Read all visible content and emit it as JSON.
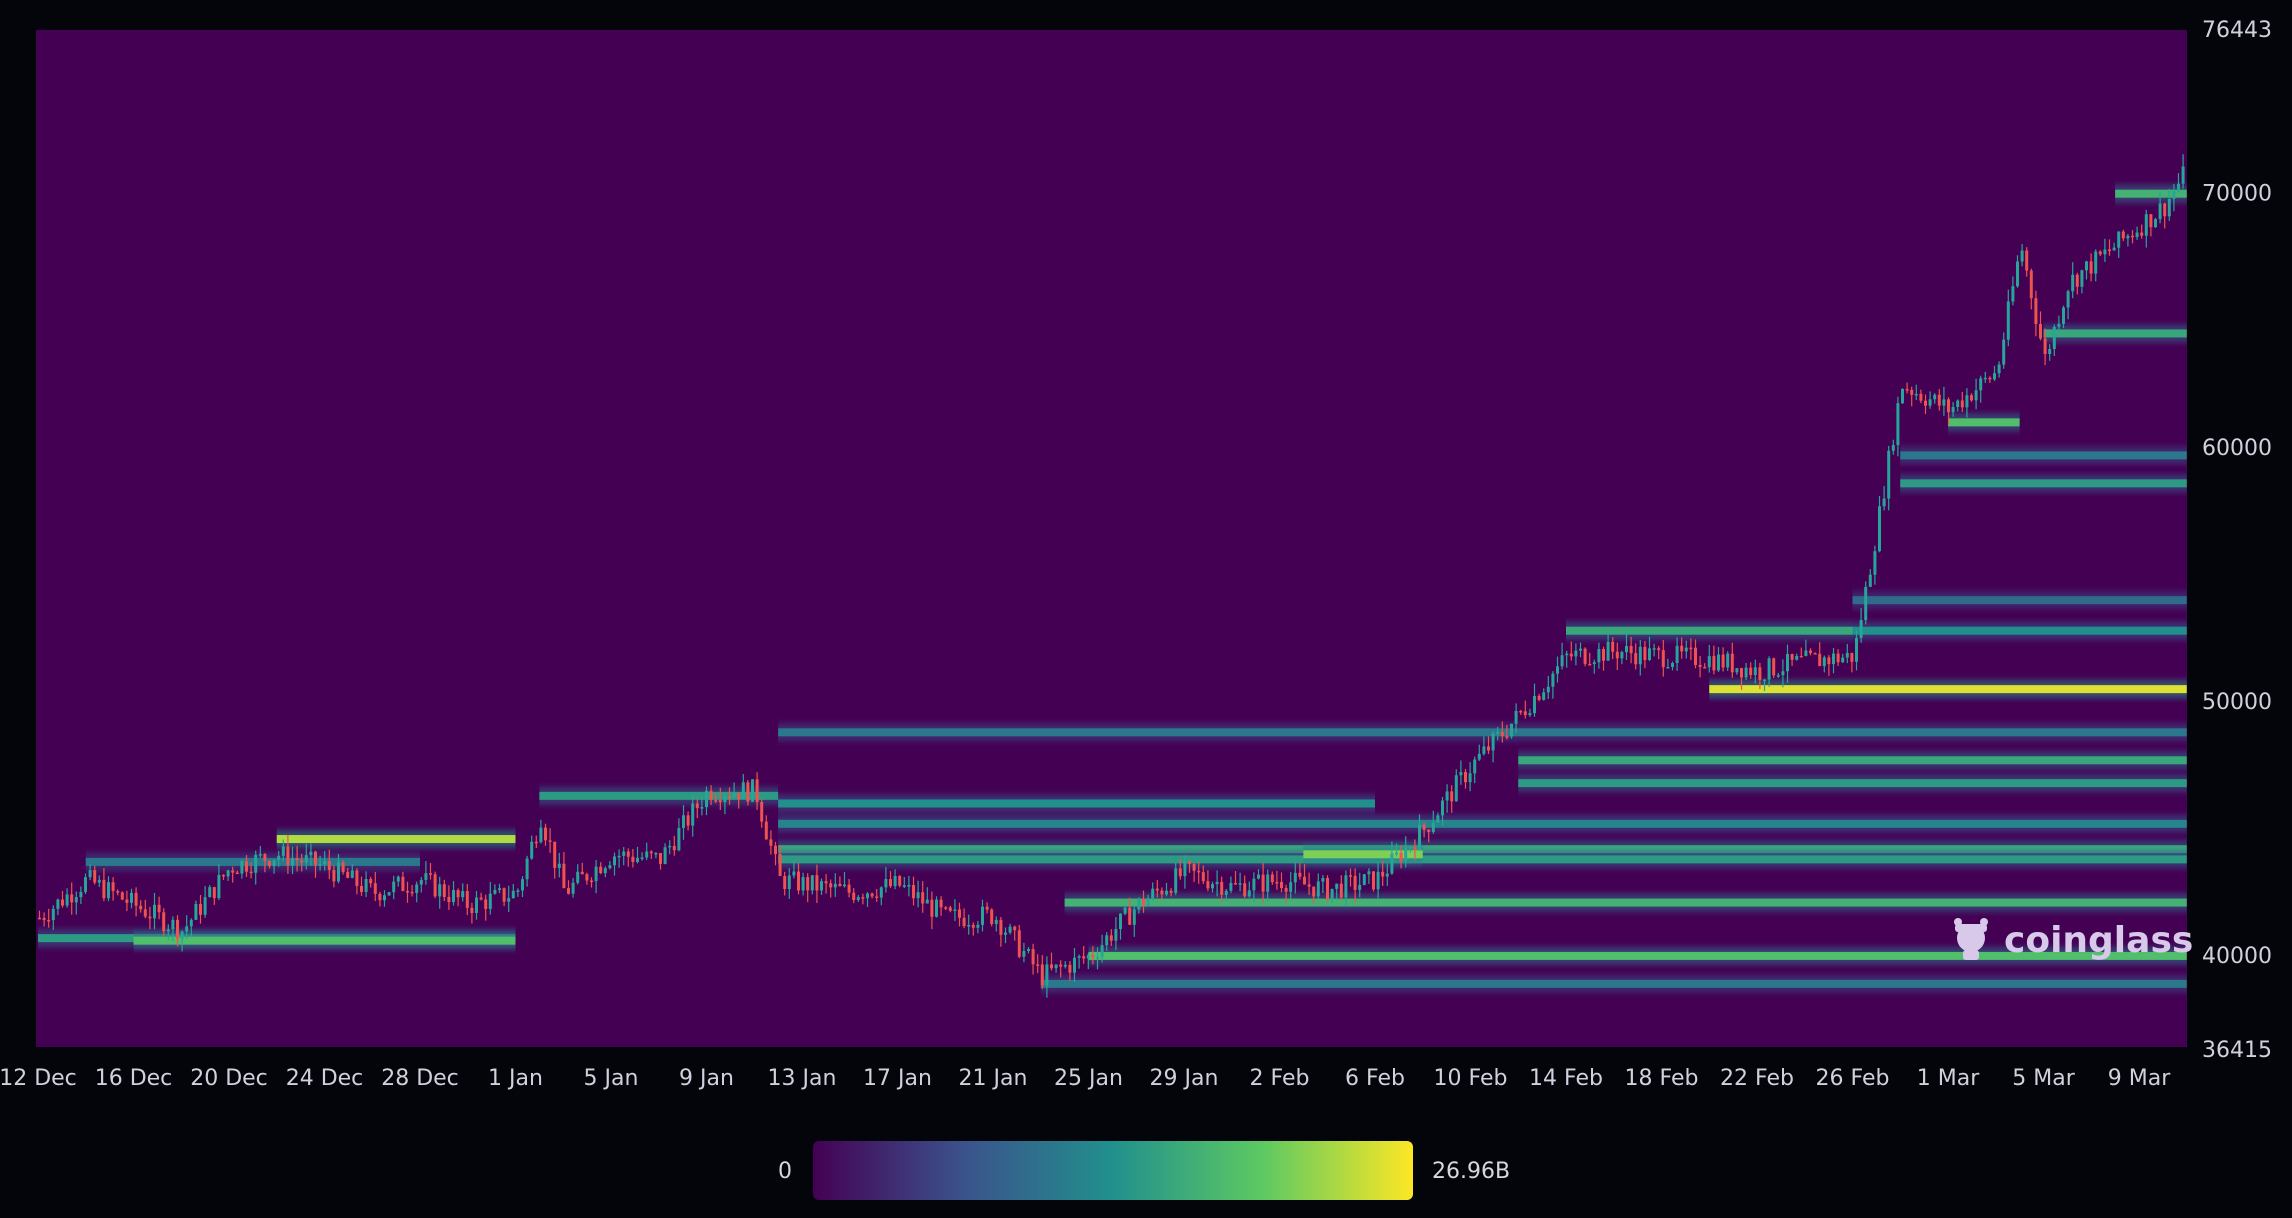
{
  "chart_data": {
    "type": "heatmap",
    "title": "",
    "subtitle": "",
    "xlabel": "",
    "ylabel": "",
    "x_tick_labels": [
      "12 Dec",
      "16 Dec",
      "20 Dec",
      "24 Dec",
      "28 Dec",
      "1 Jan",
      "5 Jan",
      "9 Jan",
      "13 Jan",
      "17 Jan",
      "21 Jan",
      "25 Jan",
      "29 Jan",
      "2 Feb",
      "6 Feb",
      "10 Feb",
      "14 Feb",
      "18 Feb",
      "22 Feb",
      "26 Feb",
      "1 Mar",
      "5 Mar",
      "9 Mar"
    ],
    "y_ticks": [
      40000,
      50000,
      60000,
      70000
    ],
    "y_range": [
      36415,
      76443
    ],
    "y_range_labels": [
      "36415",
      "76443"
    ],
    "y_tick_labels": [
      "40000",
      "50000",
      "60000",
      "70000"
    ],
    "colorscale": {
      "min_label": "0",
      "max_label": "26.96B",
      "colors": [
        "#440154",
        "#3b528b",
        "#21908d",
        "#5dc962",
        "#fde725"
      ]
    },
    "background_color": "#440154",
    "candle_up_color": "#26a69a",
    "candle_down_color": "#ef5350",
    "watermark": "coinglass",
    "price_path": [
      {
        "date": "12 Dec",
        "close": 41500
      },
      {
        "date": "14 Dec",
        "close": 43000
      },
      {
        "date": "16 Dec",
        "close": 42000
      },
      {
        "date": "18 Dec",
        "close": 41000
      },
      {
        "date": "20 Dec",
        "close": 43500
      },
      {
        "date": "22 Dec",
        "close": 44000
      },
      {
        "date": "24 Dec",
        "close": 43500
      },
      {
        "date": "26 Dec",
        "close": 42500
      },
      {
        "date": "28 Dec",
        "close": 43000
      },
      {
        "date": "30 Dec",
        "close": 42000
      },
      {
        "date": "1 Jan",
        "close": 42500
      },
      {
        "date": "2 Jan",
        "close": 45500
      },
      {
        "date": "3 Jan",
        "close": 42500
      },
      {
        "date": "5 Jan",
        "close": 44000
      },
      {
        "date": "7 Jan",
        "close": 43800
      },
      {
        "date": "9 Jan",
        "close": 46500
      },
      {
        "date": "11 Jan",
        "close": 46500
      },
      {
        "date": "12 Jan",
        "close": 43000
      },
      {
        "date": "15 Jan",
        "close": 42500
      },
      {
        "date": "17 Jan",
        "close": 42800
      },
      {
        "date": "19 Jan",
        "close": 41500
      },
      {
        "date": "21 Jan",
        "close": 41600
      },
      {
        "date": "23 Jan",
        "close": 39200
      },
      {
        "date": "25 Jan",
        "close": 40000
      },
      {
        "date": "27 Jan",
        "close": 42000
      },
      {
        "date": "29 Jan",
        "close": 43300
      },
      {
        "date": "31 Jan",
        "close": 42700
      },
      {
        "date": "2 Feb",
        "close": 43000
      },
      {
        "date": "4 Feb",
        "close": 42600
      },
      {
        "date": "6 Feb",
        "close": 43000
      },
      {
        "date": "8 Feb",
        "close": 45000
      },
      {
        "date": "10 Feb",
        "close": 47500
      },
      {
        "date": "12 Feb",
        "close": 49500
      },
      {
        "date": "14 Feb",
        "close": 51800
      },
      {
        "date": "16 Feb",
        "close": 52000
      },
      {
        "date": "18 Feb",
        "close": 51800
      },
      {
        "date": "20 Feb",
        "close": 51700
      },
      {
        "date": "22 Feb",
        "close": 51200
      },
      {
        "date": "24 Feb",
        "close": 51600
      },
      {
        "date": "26 Feb",
        "close": 51800
      },
      {
        "date": "27 Feb",
        "close": 57000
      },
      {
        "date": "28 Feb",
        "close": 62500
      },
      {
        "date": "1 Mar",
        "close": 61500
      },
      {
        "date": "3 Mar",
        "close": 63000
      },
      {
        "date": "4 Mar",
        "close": 68000
      },
      {
        "date": "5 Mar",
        "close": 63500
      },
      {
        "date": "6 Mar",
        "close": 66500
      },
      {
        "date": "8 Mar",
        "close": 68000
      },
      {
        "date": "10 Mar",
        "close": 69500
      },
      {
        "date": "11 Mar",
        "close": 71000
      }
    ],
    "liquidity_bands": [
      {
        "start": "12 Dec",
        "end": "1 Jan",
        "price": 40700,
        "intensity": 0.55
      },
      {
        "start": "16 Dec",
        "end": "1 Jan",
        "price": 40600,
        "intensity": 0.7
      },
      {
        "start": "14 Dec",
        "end": "28 Dec",
        "price": 43700,
        "intensity": 0.4
      },
      {
        "start": "22 Dec",
        "end": "1 Jan",
        "price": 44600,
        "intensity": 0.88
      },
      {
        "start": "2 Jan",
        "end": "12 Jan",
        "price": 46300,
        "intensity": 0.55
      },
      {
        "start": "12 Jan",
        "end": "11 Mar",
        "price": 48800,
        "intensity": 0.4
      },
      {
        "start": "12 Jan",
        "end": "6 Feb",
        "price": 46000,
        "intensity": 0.5
      },
      {
        "start": "12 Jan",
        "end": "11 Mar",
        "price": 45200,
        "intensity": 0.45
      },
      {
        "start": "12 Jan",
        "end": "11 Mar",
        "price": 44200,
        "intensity": 0.6
      },
      {
        "start": "12 Jan",
        "end": "11 Mar",
        "price": 43800,
        "intensity": 0.55
      },
      {
        "start": "24 Jan",
        "end": "11 Mar",
        "price": 42100,
        "intensity": 0.65
      },
      {
        "start": "25 Jan",
        "end": "11 Mar",
        "price": 40000,
        "intensity": 0.7
      },
      {
        "start": "23 Jan",
        "end": "11 Mar",
        "price": 38900,
        "intensity": 0.4
      },
      {
        "start": "3 Feb",
        "end": "8 Feb",
        "price": 44000,
        "intensity": 0.8
      },
      {
        "start": "12 Feb",
        "end": "11 Mar",
        "price": 47700,
        "intensity": 0.6
      },
      {
        "start": "12 Feb",
        "end": "11 Mar",
        "price": 46800,
        "intensity": 0.55
      },
      {
        "start": "14 Feb",
        "end": "26 Feb",
        "price": 52800,
        "intensity": 0.6
      },
      {
        "start": "20 Feb",
        "end": "11 Mar",
        "price": 50500,
        "intensity": 0.95
      },
      {
        "start": "26 Feb",
        "end": "11 Mar",
        "price": 52800,
        "intensity": 0.5
      },
      {
        "start": "26 Feb",
        "end": "11 Mar",
        "price": 54000,
        "intensity": 0.35
      },
      {
        "start": "28 Feb",
        "end": "11 Mar",
        "price": 58600,
        "intensity": 0.55
      },
      {
        "start": "28 Feb",
        "end": "11 Mar",
        "price": 59700,
        "intensity": 0.4
      },
      {
        "start": "1 Mar",
        "end": "4 Mar",
        "price": 61000,
        "intensity": 0.7
      },
      {
        "start": "5 Mar",
        "end": "11 Mar",
        "price": 64500,
        "intensity": 0.6
      },
      {
        "start": "8 Mar",
        "end": "11 Mar",
        "price": 70000,
        "intensity": 0.65
      }
    ]
  }
}
